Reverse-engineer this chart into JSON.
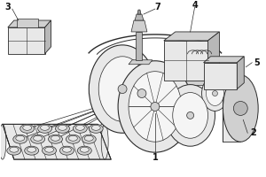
{
  "background_color": "#ffffff",
  "line_color": "#2a2a2a",
  "label_color": "#111111",
  "label_fontsize": 7,
  "figsize": [
    3.0,
    2.0
  ],
  "dpi": 100,
  "gray_light": "#e8e8e8",
  "gray_mid": "#d0d0d0",
  "gray_dark": "#b8b8b8",
  "gray_xdark": "#999999"
}
